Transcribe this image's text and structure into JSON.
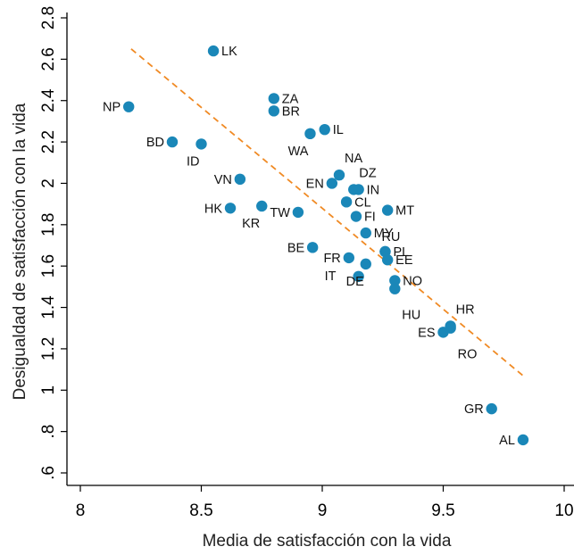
{
  "chart_data": {
    "type": "scatter",
    "xlabel": "Media de satisfacción con la vida",
    "ylabel": "Desigualdad de satisfacción con la vida",
    "xlim": [
      8,
      10
    ],
    "ylim": [
      0.6,
      2.8
    ],
    "x_ticks": [
      {
        "value": 8,
        "label": "8"
      },
      {
        "value": 8.5,
        "label": "8.5"
      },
      {
        "value": 9,
        "label": "9"
      },
      {
        "value": 9.5,
        "label": "9.5"
      },
      {
        "value": 10,
        "label": "10"
      }
    ],
    "y_ticks": [
      {
        "value": 0.6,
        "label": ".6"
      },
      {
        "value": 0.8,
        "label": ".8"
      },
      {
        "value": 1.0,
        "label": "1"
      },
      {
        "value": 1.2,
        "label": "1.2"
      },
      {
        "value": 1.4,
        "label": "1.4"
      },
      {
        "value": 1.6,
        "label": "1.6"
      },
      {
        "value": 1.8,
        "label": "1.8"
      },
      {
        "value": 2.0,
        "label": "2"
      },
      {
        "value": 2.2,
        "label": "2.2"
      },
      {
        "value": 2.4,
        "label": "2.4"
      },
      {
        "value": 2.6,
        "label": "2.6"
      },
      {
        "value": 2.8,
        "label": "2.8"
      }
    ],
    "grid": false,
    "marker_color": "#1a87b8",
    "trend_color": "#f08a24",
    "trend_line": {
      "x": [
        8.21,
        9.83
      ],
      "y": [
        2.65,
        1.07
      ]
    },
    "points": [
      {
        "label": "LK",
        "x": 8.55,
        "y": 2.64,
        "label_pos": "right"
      },
      {
        "label": "NP",
        "x": 8.2,
        "y": 2.37,
        "label_pos": "left"
      },
      {
        "label": "ZA",
        "x": 8.8,
        "y": 2.41,
        "label_pos": "right"
      },
      {
        "label": "BR",
        "x": 8.8,
        "y": 2.35,
        "label_pos": "right"
      },
      {
        "label": "IL",
        "x": 9.01,
        "y": 2.26,
        "label_pos": "right"
      },
      {
        "label": "WA",
        "x": 8.95,
        "y": 2.24,
        "label_pos": "below-left"
      },
      {
        "label": "BD",
        "x": 8.38,
        "y": 2.2,
        "label_pos": "left"
      },
      {
        "label": "ID",
        "x": 8.5,
        "y": 2.19,
        "label_pos": "below-left"
      },
      {
        "label": "NA",
        "x": 9.07,
        "y": 2.04,
        "label_pos": "above-right"
      },
      {
        "label": "VN",
        "x": 8.66,
        "y": 2.02,
        "label_pos": "left"
      },
      {
        "label": "EN",
        "x": 9.04,
        "y": 2.0,
        "label_pos": "left"
      },
      {
        "label": "DZ",
        "x": 9.13,
        "y": 1.97,
        "label_pos": "above-right"
      },
      {
        "label": "IN",
        "x": 9.15,
        "y": 1.97,
        "label_pos": "right"
      },
      {
        "label": "CL",
        "x": 9.1,
        "y": 1.91,
        "label_pos": "right"
      },
      {
        "label": "HK",
        "x": 8.62,
        "y": 1.88,
        "label_pos": "left"
      },
      {
        "label": "KR",
        "x": 8.75,
        "y": 1.89,
        "label_pos": "below-left"
      },
      {
        "label": "TW",
        "x": 8.9,
        "y": 1.86,
        "label_pos": "left"
      },
      {
        "label": "MT",
        "x": 9.27,
        "y": 1.87,
        "label_pos": "right"
      },
      {
        "label": "FI",
        "x": 9.14,
        "y": 1.84,
        "label_pos": "right"
      },
      {
        "label": "MY",
        "x": 9.18,
        "y": 1.76,
        "label_pos": "right"
      },
      {
        "label": "BE",
        "x": 8.96,
        "y": 1.69,
        "label_pos": "left"
      },
      {
        "label": "RU",
        "x": 9.26,
        "y": 1.67,
        "label_pos": "above-left"
      },
      {
        "label": "PL",
        "x": 9.26,
        "y": 1.67,
        "label_pos": "right"
      },
      {
        "label": "FR",
        "x": 9.11,
        "y": 1.64,
        "label_pos": "left"
      },
      {
        "label": "EE",
        "x": 9.27,
        "y": 1.63,
        "label_pos": "right"
      },
      {
        "label": "DE",
        "x": 9.18,
        "y": 1.61,
        "label_pos": "below-left"
      },
      {
        "label": "IT",
        "x": 9.15,
        "y": 1.55,
        "label_pos": "far-right"
      },
      {
        "label": "NO",
        "x": 9.3,
        "y": 1.53,
        "label_pos": "right"
      },
      {
        "label": "HU",
        "x": 9.3,
        "y": 1.49,
        "label_pos": "below-right"
      },
      {
        "label": "HR",
        "x": 9.53,
        "y": 1.31,
        "label_pos": "above-right"
      },
      {
        "label": "ES",
        "x": 9.5,
        "y": 1.28,
        "label_pos": "left"
      },
      {
        "label": "RO",
        "x": 9.53,
        "y": 1.3,
        "label_pos": "below-right"
      },
      {
        "label": "GR",
        "x": 9.7,
        "y": 0.91,
        "label_pos": "left"
      },
      {
        "label": "AL",
        "x": 9.83,
        "y": 0.76,
        "label_pos": "left"
      }
    ]
  }
}
